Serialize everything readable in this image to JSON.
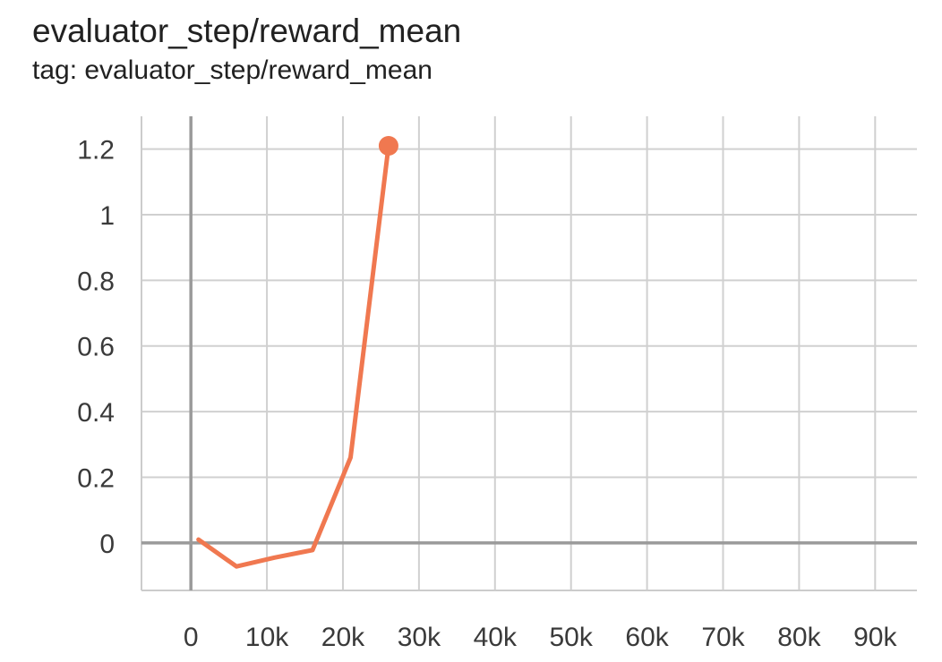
{
  "header": {
    "title": "evaluator_step/reward_mean",
    "subtitle": "tag: evaluator_step/reward_mean"
  },
  "chart_data": {
    "type": "line",
    "title": "evaluator_step/reward_mean",
    "subtitle": "tag: evaluator_step/reward_mean",
    "xlabel": "",
    "ylabel": "",
    "xlim": [
      -6500,
      95500
    ],
    "ylim": [
      -0.145,
      1.3
    ],
    "x_ticks": [
      0,
      10000,
      20000,
      30000,
      40000,
      50000,
      60000,
      70000,
      80000,
      90000
    ],
    "x_tick_labels": [
      "0",
      "10k",
      "20k",
      "30k",
      "40k",
      "50k",
      "60k",
      "70k",
      "80k",
      "90k"
    ],
    "y_ticks": [
      0,
      0.2,
      0.4,
      0.6,
      0.8,
      1,
      1.2
    ],
    "y_tick_labels": [
      "0",
      "0.2",
      "0.4",
      "0.6",
      "0.8",
      "1",
      "1.2"
    ],
    "grid": true,
    "legend": "none",
    "series": [
      {
        "color": "#f07850",
        "x": [
          1000,
          6000,
          11000,
          16000,
          21000,
          26000
        ],
        "y": [
          0.01,
          -0.072,
          -0.045,
          -0.022,
          0.26,
          1.21
        ]
      }
    ]
  }
}
